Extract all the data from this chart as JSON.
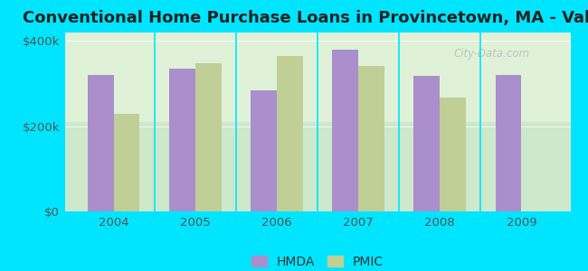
{
  "title": "Conventional Home Purchase Loans in Provincetown, MA - Value",
  "years": [
    2004,
    2005,
    2006,
    2007,
    2008,
    2009
  ],
  "hmda_values": [
    320000,
    335000,
    285000,
    380000,
    318000,
    320000
  ],
  "pmic_values": [
    230000,
    348000,
    365000,
    342000,
    268000,
    null
  ],
  "hmda_color": "#aa8fcc",
  "pmic_color": "#bfcf96",
  "background_color": "#00e5ff",
  "ylim": [
    0,
    420000
  ],
  "ytick_vals": [
    0,
    200000,
    400000
  ],
  "ytick_labels": [
    "$0",
    "$200k",
    "$400k"
  ],
  "bar_width": 0.32,
  "title_fontsize": 13,
  "legend_labels": [
    "HMDA",
    "PMIC"
  ],
  "watermark": "City-Data.com"
}
